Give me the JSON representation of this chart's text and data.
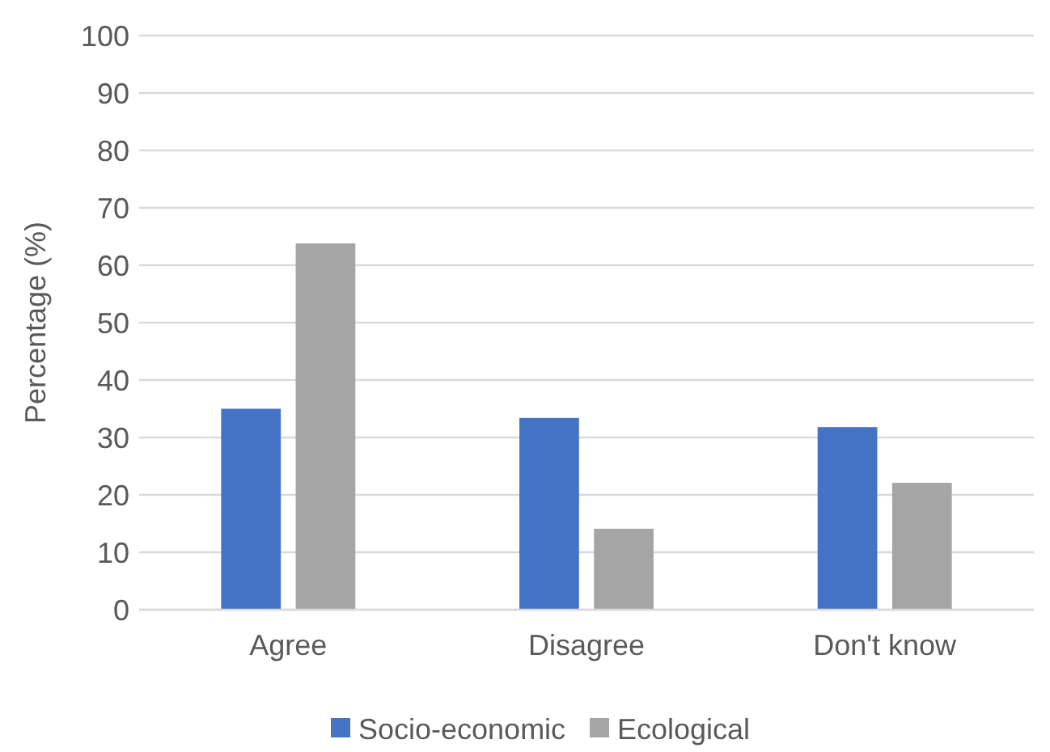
{
  "chart_data": {
    "type": "bar",
    "ylabel": "Percentage (%)",
    "categories": [
      "Agree",
      "Disagree",
      "Don't know"
    ],
    "series": [
      {
        "name": "Socio-economic",
        "color": "#4472c4",
        "values": [
          35,
          33.4,
          31.8
        ]
      },
      {
        "name": "Ecological",
        "color": "#a5a5a5",
        "values": [
          63.8,
          14.1,
          22.1
        ]
      }
    ],
    "ylim": [
      0,
      100
    ],
    "yticks": [
      0,
      10,
      20,
      30,
      40,
      50,
      60,
      70,
      80,
      90,
      100
    ],
    "grid": "y",
    "legend": "bottom"
  }
}
